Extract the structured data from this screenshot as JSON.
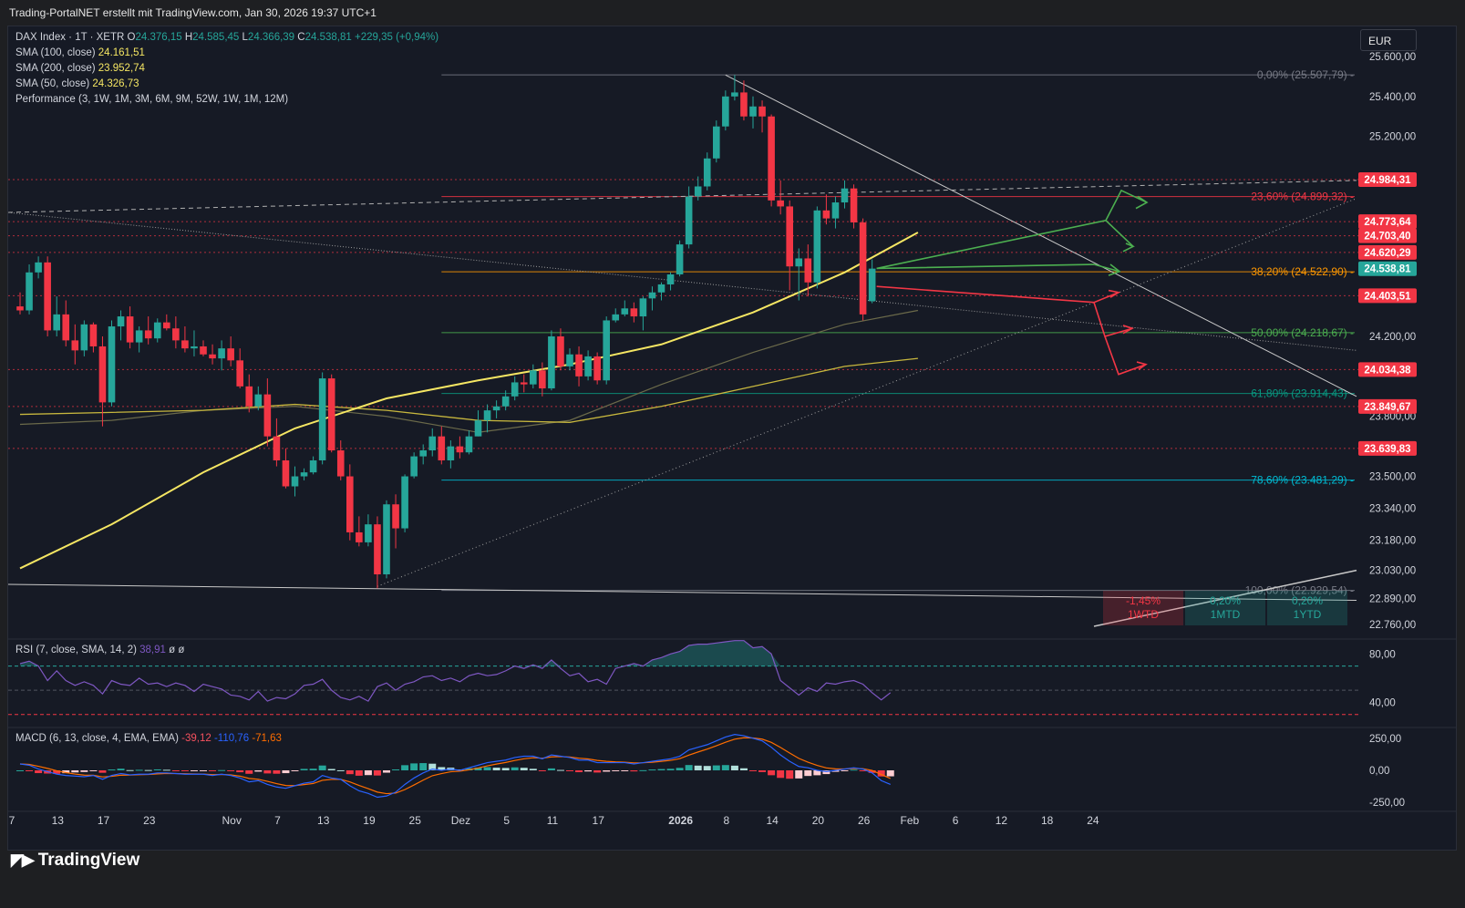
{
  "header": {
    "text": "Trading-PortalNET erstellt mit TradingView.com, Jan 30, 2026 19:37 UTC+1"
  },
  "currency": "EUR",
  "brand": "TradingView",
  "legend": {
    "symbol": "DAX Index · 1T · XETR",
    "ohlc": [
      {
        "k": "O",
        "v": "24.376,15"
      },
      {
        "k": "H",
        "v": "24.585,45"
      },
      {
        "k": "L",
        "v": "24.366,39"
      },
      {
        "k": "C",
        "v": "24.538,81"
      }
    ],
    "change": "+229,35 (+0,94%)",
    "sma": [
      {
        "label": "SMA (100, close)",
        "value": "24.161,51"
      },
      {
        "label": "SMA (200, close)",
        "value": "23.952,74"
      },
      {
        "label": "SMA (50, close)",
        "value": "24.326,73"
      }
    ],
    "performance": "Performance (3, 1W, 1M, 3M, 6M, 9M, 52W, 1W, 1M, 12M)"
  },
  "colors": {
    "up": "#26a69a",
    "down": "#f23645",
    "bg": "#161a25",
    "sma200": "#f5e663",
    "sma100": "#c7b73e",
    "sma50": "#6b6a4a",
    "rsi": "#7e57c2",
    "macd": "#2962ff",
    "signal": "#ff6d00"
  },
  "chart_data": {
    "type": "candlestick",
    "price_axis": {
      "ticks": [
        "25.600,00",
        "25.400,00",
        "25.200,00",
        "24.200,00",
        "23.800,00",
        "23.500,00",
        "23.340,00",
        "23.180,00",
        "23.030,00",
        "22.890,00",
        "22.760,00"
      ],
      "ylim": [
        22700,
        25700
      ]
    },
    "time_axis": {
      "labels": [
        {
          "t": "7",
          "i": 0
        },
        {
          "t": "13",
          "i": 5
        },
        {
          "t": "17",
          "i": 10
        },
        {
          "t": "23",
          "i": 15
        },
        {
          "t": "Nov",
          "i": 24
        },
        {
          "t": "7",
          "i": 29
        },
        {
          "t": "13",
          "i": 34
        },
        {
          "t": "19",
          "i": 39
        },
        {
          "t": "25",
          "i": 44
        },
        {
          "t": "Dez",
          "i": 49
        },
        {
          "t": "5",
          "i": 54
        },
        {
          "t": "11",
          "i": 59
        },
        {
          "t": "17",
          "i": 64
        },
        {
          "t": "2026",
          "i": 73
        },
        {
          "t": "8",
          "i": 78
        },
        {
          "t": "14",
          "i": 83
        },
        {
          "t": "20",
          "i": 88
        },
        {
          "t": "26",
          "i": 93
        },
        {
          "t": "Feb",
          "i": 98
        },
        {
          "t": "6",
          "i": 103
        },
        {
          "t": "12",
          "i": 108
        },
        {
          "t": "18",
          "i": 113
        },
        {
          "t": "24",
          "i": 118
        }
      ]
    },
    "candles": [
      [
        24350,
        24420,
        24310,
        24330
      ],
      [
        24330,
        24560,
        24310,
        24520
      ],
      [
        24520,
        24600,
        24490,
        24570
      ],
      [
        24570,
        24600,
        24200,
        24230
      ],
      [
        24230,
        24400,
        24200,
        24310
      ],
      [
        24310,
        24380,
        24150,
        24180
      ],
      [
        24180,
        24260,
        24060,
        24130
      ],
      [
        24130,
        24280,
        24100,
        24260
      ],
      [
        24260,
        24270,
        24120,
        24150
      ],
      [
        24150,
        24200,
        23750,
        23870
      ],
      [
        23870,
        24280,
        23850,
        24250
      ],
      [
        24250,
        24330,
        24180,
        24300
      ],
      [
        24300,
        24350,
        24140,
        24170
      ],
      [
        24170,
        24250,
        24120,
        24230
      ],
      [
        24230,
        24300,
        24160,
        24190
      ],
      [
        24190,
        24290,
        24170,
        24270
      ],
      [
        24270,
        24310,
        24230,
        24240
      ],
      [
        24240,
        24300,
        24140,
        24180
      ],
      [
        24180,
        24250,
        24120,
        24140
      ],
      [
        24140,
        24230,
        24100,
        24150
      ],
      [
        24150,
        24180,
        24100,
        24110
      ],
      [
        24110,
        24160,
        24060,
        24090
      ],
      [
        24090,
        24180,
        24030,
        24140
      ],
      [
        24140,
        24200,
        24050,
        24080
      ],
      [
        24080,
        24140,
        23940,
        23950
      ],
      [
        23950,
        24010,
        23820,
        23850
      ],
      [
        23850,
        23950,
        23830,
        23910
      ],
      [
        23910,
        23990,
        23650,
        23700
      ],
      [
        23700,
        23790,
        23550,
        23580
      ],
      [
        23580,
        23640,
        23440,
        23450
      ],
      [
        23450,
        23550,
        23400,
        23500
      ],
      [
        23500,
        23540,
        23480,
        23520
      ],
      [
        23520,
        23600,
        23510,
        23580
      ],
      [
        23580,
        24020,
        23560,
        23990
      ],
      [
        23990,
        24010,
        23620,
        23630
      ],
      [
        23630,
        23680,
        23480,
        23500
      ],
      [
        23500,
        23560,
        23180,
        23220
      ],
      [
        23220,
        23300,
        23150,
        23170
      ],
      [
        23170,
        23310,
        23150,
        23260
      ],
      [
        23260,
        23300,
        22940,
        23010
      ],
      [
        23010,
        23380,
        22990,
        23360
      ],
      [
        23360,
        23410,
        23140,
        23240
      ],
      [
        23240,
        23510,
        23220,
        23500
      ],
      [
        23500,
        23620,
        23490,
        23600
      ],
      [
        23600,
        23660,
        23560,
        23630
      ],
      [
        23630,
        23740,
        23600,
        23700
      ],
      [
        23700,
        23750,
        23560,
        23580
      ],
      [
        23580,
        23680,
        23540,
        23650
      ],
      [
        23650,
        23700,
        23590,
        23620
      ],
      [
        23620,
        23730,
        23610,
        23700
      ],
      [
        23700,
        23830,
        23700,
        23780
      ],
      [
        23780,
        23860,
        23720,
        23830
      ],
      [
        23830,
        23880,
        23790,
        23850
      ],
      [
        23850,
        23930,
        23830,
        23900
      ],
      [
        23900,
        24000,
        23880,
        23970
      ],
      [
        23970,
        24010,
        23920,
        23960
      ],
      [
        23960,
        24060,
        23940,
        24030
      ],
      [
        24030,
        24070,
        23900,
        23940
      ],
      [
        23940,
        24230,
        23930,
        24200
      ],
      [
        24200,
        24240,
        24030,
        24050
      ],
      [
        24050,
        24140,
        24030,
        24110
      ],
      [
        24110,
        24150,
        23950,
        24000
      ],
      [
        24000,
        24130,
        23980,
        24100
      ],
      [
        24100,
        24120,
        23960,
        23980
      ],
      [
        23980,
        24300,
        23960,
        24280
      ],
      [
        24280,
        24340,
        24270,
        24310
      ],
      [
        24310,
        24380,
        24300,
        24340
      ],
      [
        24340,
        24370,
        24270,
        24300
      ],
      [
        24300,
        24400,
        24230,
        24390
      ],
      [
        24390,
        24450,
        24330,
        24420
      ],
      [
        24420,
        24470,
        24380,
        24460
      ],
      [
        24460,
        24520,
        24430,
        24510
      ],
      [
        24510,
        24680,
        24500,
        24660
      ],
      [
        24660,
        24950,
        24640,
        24900
      ],
      [
        24900,
        25000,
        24880,
        24950
      ],
      [
        24950,
        25120,
        24930,
        25090
      ],
      [
        25090,
        25280,
        25070,
        25250
      ],
      [
        25250,
        25430,
        25230,
        25400
      ],
      [
        25400,
        25507,
        25380,
        25420
      ],
      [
        25420,
        25480,
        25280,
        25300
      ],
      [
        25300,
        25400,
        25240,
        25350
      ],
      [
        25350,
        25380,
        25220,
        25300
      ],
      [
        25300,
        25310,
        24850,
        24880
      ],
      [
        24880,
        24980,
        24810,
        24850
      ],
      [
        24850,
        24880,
        24430,
        24550
      ],
      [
        24550,
        24640,
        24380,
        24590
      ],
      [
        24590,
        24660,
        24400,
        24470
      ],
      [
        24470,
        24850,
        24440,
        24830
      ],
      [
        24830,
        24910,
        24760,
        24790
      ],
      [
        24790,
        24900,
        24740,
        24870
      ],
      [
        24870,
        24980,
        24840,
        24940
      ],
      [
        24940,
        24960,
        24740,
        24770
      ],
      [
        24770,
        24790,
        24280,
        24310
      ],
      [
        24376,
        24585,
        24366,
        24539
      ]
    ],
    "sma200": [
      [
        0,
        23040
      ],
      [
        10,
        23260
      ],
      [
        20,
        23520
      ],
      [
        30,
        23740
      ],
      [
        40,
        23890
      ],
      [
        50,
        23980
      ],
      [
        60,
        24060
      ],
      [
        70,
        24160
      ],
      [
        80,
        24320
      ],
      [
        90,
        24520
      ],
      [
        98,
        24720
      ]
    ],
    "sma100": [
      [
        0,
        23810
      ],
      [
        10,
        23820
      ],
      [
        20,
        23830
      ],
      [
        30,
        23860
      ],
      [
        40,
        23830
      ],
      [
        50,
        23780
      ],
      [
        60,
        23770
      ],
      [
        70,
        23850
      ],
      [
        80,
        23950
      ],
      [
        90,
        24050
      ],
      [
        98,
        24090
      ]
    ],
    "sma50": [
      [
        0,
        23760
      ],
      [
        10,
        23780
      ],
      [
        20,
        23830
      ],
      [
        30,
        23850
      ],
      [
        40,
        23800
      ],
      [
        50,
        23720
      ],
      [
        60,
        23780
      ],
      [
        70,
        23960
      ],
      [
        80,
        24120
      ],
      [
        90,
        24260
      ],
      [
        98,
        24330
      ]
    ],
    "price_labels": [
      {
        "text": "24.984,31",
        "value": 24984.31,
        "color": "#f23645"
      },
      {
        "text": "24.773,64",
        "value": 24773.64,
        "color": "#f23645"
      },
      {
        "text": "24.703,40",
        "value": 24703.4,
        "color": "#f23645"
      },
      {
        "text": "24.620,29",
        "value": 24620.29,
        "color": "#f23645"
      },
      {
        "text": "24.538,81",
        "value": 24538.81,
        "color": "#26a69a"
      },
      {
        "text": "24.403,51",
        "value": 24403.51,
        "color": "#f23645"
      },
      {
        "text": "24.034,38",
        "value": 24034.38,
        "color": "#f23645"
      },
      {
        "text": "23.849,67",
        "value": 23849.67,
        "color": "#f23645"
      },
      {
        "text": "23.639,83",
        "value": 23639.83,
        "color": "#f23645"
      }
    ],
    "fib_levels": [
      {
        "text": "0,00% (25.507,79)",
        "value": 25507.79,
        "color": "#787b86"
      },
      {
        "text": "23,60% (24.899,32)",
        "value": 24899.32,
        "color": "#f23645"
      },
      {
        "text": "38,20% (24.522,90)",
        "value": 24522.9,
        "color": "#ff9800"
      },
      {
        "text": "50,00% (24.218,67)",
        "value": 24218.67,
        "color": "#4caf50"
      },
      {
        "text": "61,80% (23.914,43)",
        "value": 23914.43,
        "color": "#089981"
      },
      {
        "text": "78,60% (23.481,29)",
        "value": 23481.29,
        "color": "#00bcd4"
      },
      {
        "text": "100,00% (22.929,54)",
        "value": 22929.54,
        "color": "#787b86"
      }
    ],
    "performance_cells": [
      {
        "pct": "-1,45%",
        "label": "1WTD",
        "color": "#f23645"
      },
      {
        "pct": "0,20%",
        "label": "1MTD",
        "color": "#26a69a"
      },
      {
        "pct": "0,20%",
        "label": "1YTD",
        "color": "#26a69a"
      }
    ],
    "rsi": {
      "legend": "RSI (7, close, SMA, 14, 2)",
      "value": "38,91",
      "extra": "ø ø",
      "ticks": [
        "80,00",
        "40,00"
      ],
      "ylim": [
        20,
        90
      ],
      "values": [
        72,
        74,
        70,
        58,
        66,
        58,
        54,
        57,
        54,
        47,
        58,
        55,
        54,
        60,
        55,
        56,
        53,
        56,
        54,
        49,
        55,
        53,
        51,
        46,
        45,
        42,
        49,
        41,
        44,
        43,
        47,
        54,
        55,
        59,
        50,
        44,
        42,
        45,
        41,
        53,
        56,
        50,
        55,
        57,
        61,
        62,
        58,
        60,
        57,
        62,
        64,
        62,
        63,
        66,
        70,
        68,
        71,
        68,
        75,
        68,
        62,
        64,
        57,
        59,
        55,
        68,
        70,
        72,
        70,
        75,
        77,
        80,
        82,
        87,
        88,
        88,
        89,
        90,
        91,
        91,
        85,
        86,
        80,
        58,
        52,
        46,
        52,
        49,
        56,
        55,
        57,
        58,
        55,
        48,
        42,
        48
      ]
    },
    "macd": {
      "legend": "MACD (6, 13, close, 4, EMA, EMA)",
      "values_text": [
        "-39,12",
        "-110,76",
        "-71,63"
      ],
      "ticks": [
        "250,00",
        "0,00",
        "-250,00"
      ],
      "ylim": [
        -320,
        320
      ],
      "macd": [
        50,
        40,
        10,
        -10,
        -30,
        -40,
        -45,
        -50,
        -40,
        -70,
        -40,
        -25,
        -35,
        -30,
        -30,
        -20,
        -20,
        -25,
        -30,
        -30,
        -30,
        -40,
        -30,
        -40,
        -60,
        -90,
        -80,
        -110,
        -130,
        -140,
        -120,
        -100,
        -90,
        -40,
        -60,
        -70,
        -120,
        -160,
        -180,
        -210,
        -200,
        -170,
        -110,
        -60,
        -20,
        10,
        0,
        10,
        0,
        20,
        40,
        60,
        70,
        80,
        100,
        110,
        110,
        90,
        120,
        110,
        100,
        80,
        80,
        60,
        60,
        60,
        60,
        50,
        60,
        70,
        80,
        90,
        110,
        160,
        180,
        200,
        230,
        260,
        280,
        270,
        250,
        230,
        180,
        120,
        70,
        30,
        20,
        0,
        -10,
        0,
        10,
        20,
        10,
        -20,
        -80,
        -110
      ]
    }
  }
}
